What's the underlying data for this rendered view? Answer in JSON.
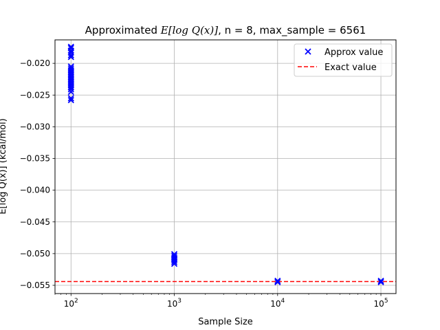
{
  "chart_data": {
    "type": "scatter",
    "title_prefix": "Approximated ",
    "title_math": "E[log Q(x)]",
    "title_suffix": ", n = 8, max_sample = 6561",
    "xlabel": "Sample Size",
    "ylabel": "E[log Q(x)] (kcal/mol)",
    "xscale": "log",
    "xlim": [
      70,
      140000
    ],
    "ylim": [
      -0.0563,
      -0.0163
    ],
    "grid": true,
    "legend_placement": "upper-right",
    "x_ticks": [
      {
        "value": 100,
        "base": "10",
        "exp": "2"
      },
      {
        "value": 1000,
        "base": "10",
        "exp": "3"
      },
      {
        "value": 10000,
        "base": "10",
        "exp": "4"
      },
      {
        "value": 100000,
        "base": "10",
        "exp": "5"
      }
    ],
    "y_ticks": [
      {
        "value": -0.02,
        "label": "−0.020"
      },
      {
        "value": -0.025,
        "label": "−0.025"
      },
      {
        "value": -0.03,
        "label": "−0.030"
      },
      {
        "value": -0.035,
        "label": "−0.035"
      },
      {
        "value": -0.04,
        "label": "−0.040"
      },
      {
        "value": -0.045,
        "label": "−0.045"
      },
      {
        "value": -0.05,
        "label": "−0.050"
      },
      {
        "value": -0.055,
        "label": "−0.055"
      }
    ],
    "series": [
      {
        "name": "Approx value",
        "marker": "x",
        "color": "#0000ff",
        "points": [
          {
            "x": 100,
            "y": -0.0174
          },
          {
            "x": 100,
            "y": -0.0176
          },
          {
            "x": 100,
            "y": -0.018
          },
          {
            "x": 100,
            "y": -0.0183
          },
          {
            "x": 100,
            "y": -0.0187
          },
          {
            "x": 100,
            "y": -0.019
          },
          {
            "x": 100,
            "y": -0.0205
          },
          {
            "x": 100,
            "y": -0.0208
          },
          {
            "x": 100,
            "y": -0.0211
          },
          {
            "x": 100,
            "y": -0.0214
          },
          {
            "x": 100,
            "y": -0.0217
          },
          {
            "x": 100,
            "y": -0.022
          },
          {
            "x": 100,
            "y": -0.0223
          },
          {
            "x": 100,
            "y": -0.0226
          },
          {
            "x": 100,
            "y": -0.0229
          },
          {
            "x": 100,
            "y": -0.0232
          },
          {
            "x": 100,
            "y": -0.0235
          },
          {
            "x": 100,
            "y": -0.0238
          },
          {
            "x": 100,
            "y": -0.0241
          },
          {
            "x": 100,
            "y": -0.0245
          },
          {
            "x": 100,
            "y": -0.0255
          },
          {
            "x": 100,
            "y": -0.0258
          },
          {
            "x": 1000,
            "y": -0.0501
          },
          {
            "x": 1000,
            "y": -0.0504
          },
          {
            "x": 1000,
            "y": -0.0507
          },
          {
            "x": 1000,
            "y": -0.051
          },
          {
            "x": 1000,
            "y": -0.0513
          },
          {
            "x": 1000,
            "y": -0.0516
          },
          {
            "x": 10000,
            "y": -0.0543
          },
          {
            "x": 10000,
            "y": -0.0545
          },
          {
            "x": 100000,
            "y": -0.0543
          },
          {
            "x": 100000,
            "y": -0.0545
          }
        ]
      },
      {
        "name": "Exact value",
        "marker": "dashed-line",
        "color": "#ff0000",
        "y": -0.0544
      }
    ]
  }
}
